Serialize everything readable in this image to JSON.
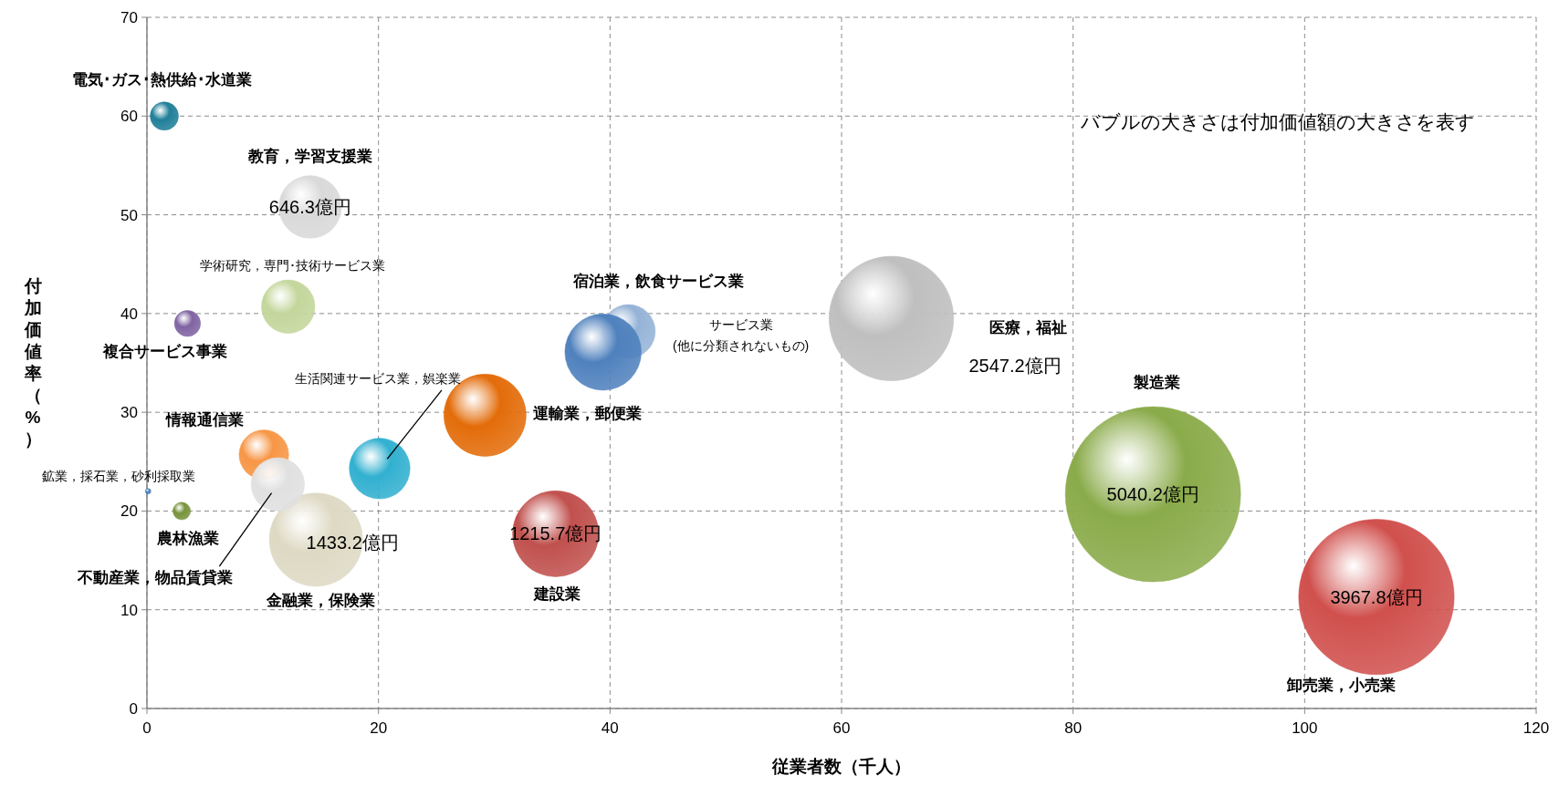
{
  "chart_data": {
    "type": "bubble",
    "xlabel": "従業者数（千人）",
    "ylabel": "付加価値率（%）",
    "xlim": [
      0,
      120
    ],
    "xticks": [
      0,
      20,
      40,
      60,
      80,
      100,
      120
    ],
    "ylim": [
      0,
      70
    ],
    "yticks": [
      0,
      10,
      20,
      30,
      40,
      50,
      60,
      70
    ],
    "grid": true,
    "line_style": "dashed",
    "annotations": [
      "バブルの大きさは付加価値額の大きさを表す",
      {
        "text": "646.3億円",
        "x": 14.1,
        "y": 50.8
      },
      "2547.2億円",
      {
        "text": "1433.2億円",
        "x": 14.6,
        "y": 17.1
      },
      {
        "text": "1215.7億円",
        "x": 35.3,
        "y": 17.7
      },
      {
        "text": "5040.2億円",
        "x": 86.9,
        "y": 21.7
      },
      {
        "text": "3967.8億円",
        "x": 106.2,
        "y": 11.3
      }
    ],
    "series": [
      {
        "name": "電気･ガス･熱供給･水道業",
        "color": "#1f7f99",
        "x": [
          1.5
        ],
        "values": [
          60.0
        ],
        "sizes": [
          0.026
        ]
      },
      {
        "name": "教育，学習支援業",
        "color": "#d9d9d9",
        "x": [
          14.1
        ],
        "values": [
          50.8
        ],
        "sizes": [
          0.128
        ]
      },
      {
        "name": "学術研究，専門･技術サービス業",
        "color": "#c3d69b",
        "x": [
          12.2
        ],
        "values": [
          40.7
        ],
        "sizes": [
          0.093
        ]
      },
      {
        "name": "複合サービス事業",
        "color": "#8064a2",
        "x": [
          3.5
        ],
        "values": [
          39.0
        ],
        "sizes": [
          0.022
        ]
      },
      {
        "name": "サービス業\n(他に分類されないもの)",
        "color": "#95b3d7",
        "x": [
          41.6
        ],
        "values": [
          38.2
        ],
        "sizes": [
          0.093
        ]
      },
      {
        "name": "宿泊業，飲食サービス業",
        "color": "#4f81bd",
        "x": [
          39.4
        ],
        "values": [
          36.1
        ],
        "sizes": [
          0.19
        ]
      },
      {
        "name": "医療，福祉",
        "color": "#bfbfbf",
        "x": [
          64.3
        ],
        "values": [
          39.5
        ],
        "sizes": [
          0.505
        ]
      },
      {
        "name": "運輸業，郵便業",
        "color": "#e36c09",
        "x": [
          29.2
        ],
        "values": [
          29.7
        ],
        "sizes": [
          0.22
        ]
      },
      {
        "name": "生活関連サービス業，娯楽業",
        "color": "#31b0d0",
        "x": [
          20.1
        ],
        "values": [
          24.3
        ],
        "sizes": [
          0.12
        ]
      },
      {
        "name": "情報通信業",
        "color": "#f79646",
        "x": [
          10.1
        ],
        "values": [
          25.7
        ],
        "sizes": [
          0.08
        ]
      },
      {
        "name": "金融業，保険業",
        "color": "#ddd9c3",
        "x": [
          14.6
        ],
        "values": [
          17.1
        ],
        "sizes": [
          0.284
        ]
      },
      {
        "name": "不動産業，物品賃貸業",
        "color": "#e0e0e0",
        "x": [
          11.3
        ],
        "values": [
          22.7
        ],
        "sizes": [
          0.093
        ]
      },
      {
        "name": "鉱業，採石業，砂利採取業",
        "color": "#4f81bd",
        "x": [
          0.1
        ],
        "values": [
          22.0
        ],
        "sizes": [
          0.001
        ]
      },
      {
        "name": "農林漁業",
        "color": "#77933c",
        "x": [
          3.0
        ],
        "values": [
          20.0
        ],
        "sizes": [
          0.01
        ]
      },
      {
        "name": "建設業",
        "color": "#c0504d",
        "x": [
          35.3
        ],
        "values": [
          17.7
        ],
        "sizes": [
          0.241
        ]
      },
      {
        "name": "製造業",
        "color": "#8aab4a",
        "x": [
          86.9
        ],
        "values": [
          21.7
        ],
        "sizes": [
          1
        ]
      },
      {
        "name": "卸売業，小売業",
        "color": "#d0504d",
        "x": [
          106.2
        ],
        "values": [
          11.3
        ],
        "sizes": [
          0.787
        ]
      }
    ]
  }
}
